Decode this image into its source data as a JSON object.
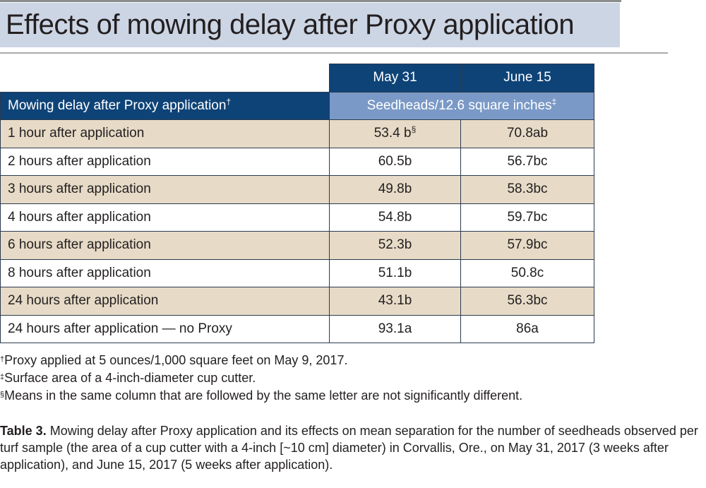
{
  "title": "Effects of mowing delay after Proxy application",
  "table": {
    "date_headers": [
      "May 31",
      "June 15"
    ],
    "row_header_label": "Mowing delay after Proxy application",
    "row_header_mark": "†",
    "unit_label": "Seedheads/12.6 square inches",
    "unit_mark": "‡",
    "rows": [
      {
        "label": "1 hour after application",
        "may": "53.4 b",
        "may_mark": "§",
        "june": "70.8ab"
      },
      {
        "label": "2 hours after application",
        "may": "60.5b",
        "june": "56.7bc"
      },
      {
        "label": "3 hours after application",
        "may": "49.8b",
        "june": "58.3bc"
      },
      {
        "label": "4 hours after application",
        "may": "54.8b",
        "june": "59.7bc"
      },
      {
        "label": "6 hours after application",
        "may": "52.3b",
        "june": "57.9bc"
      },
      {
        "label": "8 hours after application",
        "may": "51.1b",
        "june": "50.8c"
      },
      {
        "label": "24 hours after application",
        "may": "43.1b",
        "june": "56.3bc"
      },
      {
        "label": "24 hours after application — no Proxy",
        "may": "93.1a",
        "june": "86a"
      }
    ]
  },
  "footnotes": [
    {
      "mark": "†",
      "text": "Proxy applied at 5 ounces/1,000 square feet on May 9, 2017."
    },
    {
      "mark": "‡",
      "text": "Surface area of a 4-inch-diameter cup cutter."
    },
    {
      "mark": "§",
      "text": "Means in the same column that are followed by the same letter are not significantly different."
    }
  ],
  "caption": {
    "label": "Table 3.",
    "text": " Mowing delay after Proxy application and its effects on mean separation for the number of seedheads observed per turf sample (the area of a cup cutter with a 4-inch [~10 cm] diameter) in Corvallis, Ore., on May 31, 2017 (3 weeks after application), and June 15, 2017 (5 weeks after application)."
  }
}
